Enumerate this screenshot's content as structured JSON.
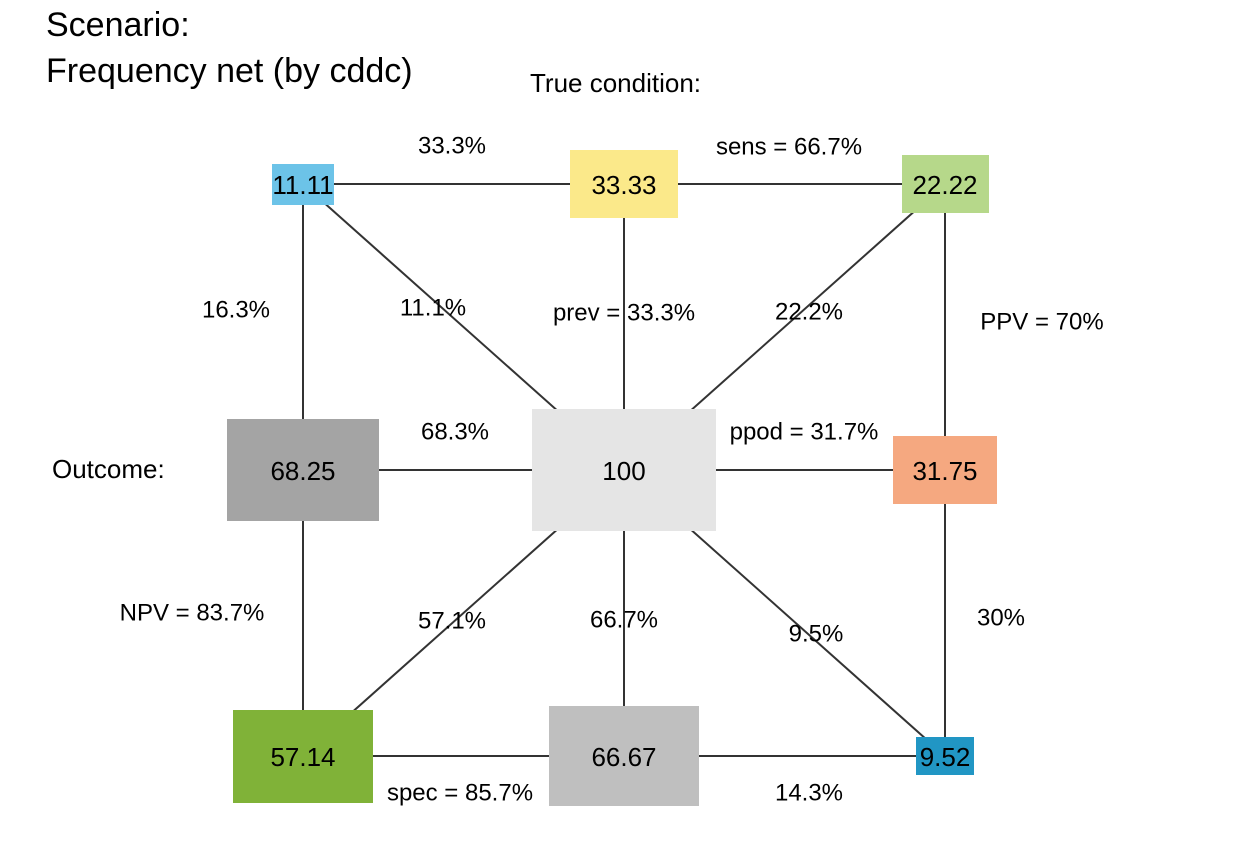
{
  "title": {
    "line1": "Scenario:",
    "line2": "Frequency net (by cddc)"
  },
  "headings": {
    "true_condition": "True condition:",
    "outcome": "Outcome:"
  },
  "nodes": {
    "center": {
      "label": "100",
      "color": "#e5e5e5"
    },
    "hi": {
      "label": "11.11",
      "color": "#6cc3e8"
    },
    "cond_true": {
      "label": "33.33",
      "color": "#fbe98a"
    },
    "tp": {
      "label": "22.22",
      "color": "#b6d88a"
    },
    "dec_neg": {
      "label": "68.25",
      "color": "#a4a4a4"
    },
    "dec_pos": {
      "label": "31.75",
      "color": "#f5a880"
    },
    "tn": {
      "label": "57.14",
      "color": "#80b238"
    },
    "cond_false": {
      "label": "66.67",
      "color": "#bfbfbf"
    },
    "fa": {
      "label": "9.52",
      "color": "#2196c4"
    }
  },
  "edge_labels": {
    "top_left": "33.3%",
    "sens": "sens = 66.7%",
    "left_top": "16.3%",
    "diag_ul": "11.1%",
    "prev": "prev = 33.3%",
    "diag_ur": "22.2%",
    "ppv": "PPV = 70%",
    "mid_left": "68.3%",
    "ppod": "ppod = 31.7%",
    "npv": "NPV = 83.7%",
    "diag_ll": "57.1%",
    "vert_bottom": "66.7%",
    "diag_lr": "9.5%",
    "right_bottom": "30%",
    "spec": "spec = 85.7%",
    "bottom_right": "14.3%"
  }
}
